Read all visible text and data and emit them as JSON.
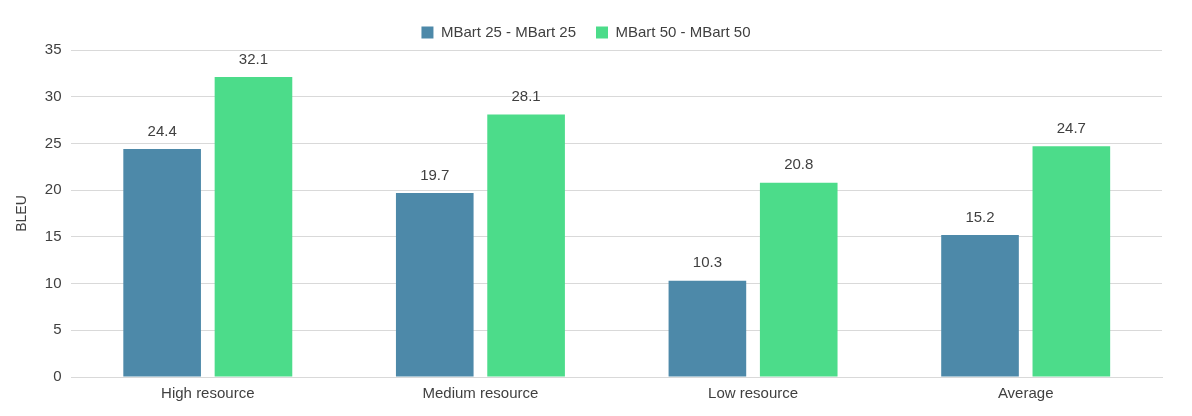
{
  "chart_data": {
    "type": "bar",
    "ylabel": "BLEU",
    "categories": [
      "High resource",
      "Medium resource",
      "Low resource",
      "Average"
    ],
    "series": [
      {
        "name": "MBart 25 - MBart 25",
        "color": "#4d89a9",
        "values": [
          24.4,
          19.7,
          10.3,
          15.2
        ]
      },
      {
        "name": "MBart 50 - MBart 50",
        "color": "#4cdc8a",
        "values": [
          32.1,
          28.1,
          20.8,
          24.7
        ]
      }
    ],
    "ylim": [
      0,
      35
    ],
    "yticks": [
      0,
      5,
      10,
      15,
      20,
      25,
      30,
      35
    ],
    "grid": "y",
    "legend": "top",
    "data_labels": true
  }
}
